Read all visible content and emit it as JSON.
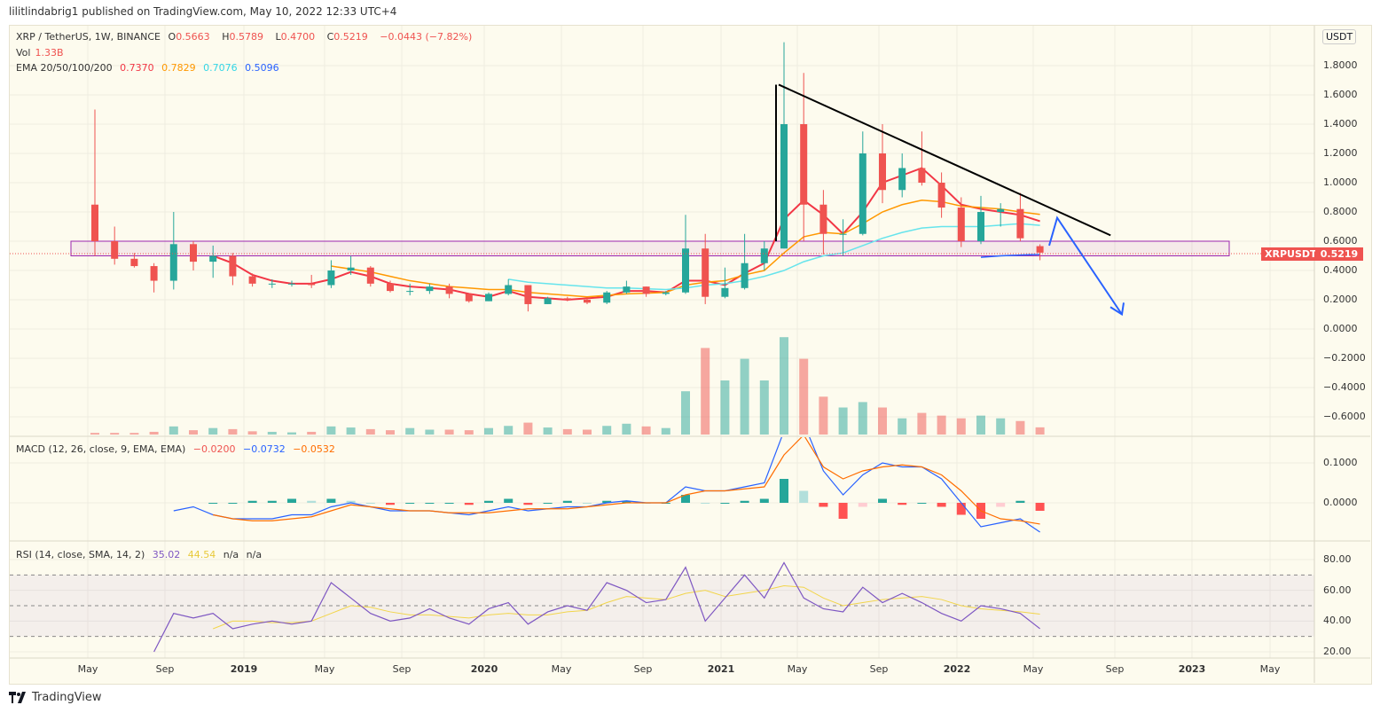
{
  "published": "lilitlindabrig1 published on TradingView.com, May 10, 2022 12:33 UTC+4",
  "legend": {
    "symbol": "XRP / TetherUS, 1W, BINANCE",
    "open_label": "O",
    "open": "0.5663",
    "high_label": "H",
    "high": "0.5789",
    "low_label": "L",
    "low": "0.4700",
    "close_label": "C",
    "close": "0.5219",
    "change": "−0.0443 (−7.82%)",
    "vol_label": "Vol",
    "vol": "1.33B",
    "ema_label": "EMA 20/50/100/200",
    "ema20": "0.7370",
    "ema50": "0.7829",
    "ema100": "0.7076",
    "ema200": "0.5096",
    "macd_label": "MACD (12, 26, close, 9, EMA, EMA)",
    "macd_hist": "−0.0200",
    "macd_line": "−0.0732",
    "macd_signal": "−0.0532",
    "rsi_label": "RSI (14, close, SMA, 14, 2)",
    "rsi": "35.02",
    "rsi_sma": "44.54",
    "rsi_na1": "n/a",
    "rsi_na2": "n/a"
  },
  "currency_badge": "USDT",
  "symbol_tag": "XRPUSDT",
  "last_price": "0.5219",
  "footer_logo": "TradingView",
  "colors": {
    "up": "#26a69a",
    "down": "#ef5350",
    "ema20": "#f23645",
    "ema50": "#ff9800",
    "ema100": "#66e4ec",
    "ema200": "#2962ff",
    "macd": "#2962ff",
    "signal": "#ff6d00",
    "rsi": "#7e57c2",
    "rsi_sma": "#f2d54a",
    "zone": "#9c27b0",
    "trendline": "#000000",
    "arrow": "#2962ff"
  },
  "chart_data": {
    "type": "candlestick",
    "interval": "1W (approximated monthly)",
    "price_axis": {
      "ticks": [
        "1.8000",
        "1.6000",
        "1.4000",
        "1.2000",
        "1.0000",
        "0.8000",
        "0.6000",
        "0.4000",
        "0.2000",
        "0.0000",
        "−0.2000",
        "−0.4000",
        "−0.6000"
      ],
      "range": [
        -0.7,
        2.0
      ]
    },
    "macd_axis": {
      "ticks": [
        "0.1000",
        "0.0000"
      ]
    },
    "rsi_axis": {
      "ticks": [
        "80.00",
        "60.00",
        "40.00",
        "20.00"
      ],
      "bands": [
        70,
        50,
        30
      ]
    },
    "time_axis": {
      "ticks": [
        "May",
        "Sep",
        "2019",
        "May",
        "Sep",
        "2020",
        "May",
        "Sep",
        "2021",
        "May",
        "Sep",
        "2022",
        "May",
        "Sep",
        "2023",
        "May"
      ]
    },
    "months": [
      "2018-05",
      "2018-06",
      "2018-07",
      "2018-08",
      "2018-09",
      "2018-10",
      "2018-11",
      "2018-12",
      "2019-01",
      "2019-02",
      "2019-03",
      "2019-04",
      "2019-05",
      "2019-06",
      "2019-07",
      "2019-08",
      "2019-09",
      "2019-10",
      "2019-11",
      "2019-12",
      "2020-01",
      "2020-02",
      "2020-03",
      "2020-04",
      "2020-05",
      "2020-06",
      "2020-07",
      "2020-08",
      "2020-09",
      "2020-10",
      "2020-11",
      "2020-12",
      "2021-01",
      "2021-02",
      "2021-03",
      "2021-04",
      "2021-05",
      "2021-06",
      "2021-07",
      "2021-08",
      "2021-09",
      "2021-10",
      "2021-11",
      "2021-12",
      "2022-01",
      "2022-02",
      "2022-03",
      "2022-04",
      "2022-05"
    ],
    "ohlc": [
      [
        0.85,
        1.5,
        0.5,
        0.6
      ],
      [
        0.6,
        0.7,
        0.44,
        0.48
      ],
      [
        0.48,
        0.52,
        0.42,
        0.43
      ],
      [
        0.43,
        0.45,
        0.25,
        0.33
      ],
      [
        0.33,
        0.8,
        0.27,
        0.58
      ],
      [
        0.58,
        0.6,
        0.4,
        0.46
      ],
      [
        0.46,
        0.57,
        0.35,
        0.5
      ],
      [
        0.5,
        0.52,
        0.3,
        0.36
      ],
      [
        0.36,
        0.38,
        0.29,
        0.31
      ],
      [
        0.31,
        0.34,
        0.28,
        0.31
      ],
      [
        0.31,
        0.33,
        0.29,
        0.31
      ],
      [
        0.31,
        0.37,
        0.28,
        0.3
      ],
      [
        0.3,
        0.47,
        0.28,
        0.4
      ],
      [
        0.4,
        0.5,
        0.37,
        0.42
      ],
      [
        0.42,
        0.43,
        0.29,
        0.31
      ],
      [
        0.31,
        0.33,
        0.25,
        0.26
      ],
      [
        0.26,
        0.31,
        0.23,
        0.26
      ],
      [
        0.26,
        0.31,
        0.24,
        0.29
      ],
      [
        0.29,
        0.31,
        0.21,
        0.24
      ],
      [
        0.24,
        0.24,
        0.18,
        0.19
      ],
      [
        0.19,
        0.25,
        0.19,
        0.24
      ],
      [
        0.24,
        0.34,
        0.23,
        0.3
      ],
      [
        0.3,
        0.3,
        0.12,
        0.17
      ],
      [
        0.17,
        0.22,
        0.17,
        0.21
      ],
      [
        0.21,
        0.22,
        0.19,
        0.2
      ],
      [
        0.2,
        0.21,
        0.17,
        0.18
      ],
      [
        0.18,
        0.26,
        0.17,
        0.25
      ],
      [
        0.25,
        0.33,
        0.24,
        0.29
      ],
      [
        0.29,
        0.29,
        0.22,
        0.24
      ],
      [
        0.24,
        0.26,
        0.23,
        0.25
      ],
      [
        0.25,
        0.78,
        0.24,
        0.55
      ],
      [
        0.55,
        0.65,
        0.17,
        0.22
      ],
      [
        0.22,
        0.42,
        0.21,
        0.28
      ],
      [
        0.28,
        0.65,
        0.27,
        0.45
      ],
      [
        0.45,
        0.6,
        0.4,
        0.55
      ],
      [
        0.55,
        1.96,
        0.55,
        1.4
      ],
      [
        1.4,
        1.75,
        0.6,
        0.85
      ],
      [
        0.85,
        0.95,
        0.51,
        0.65
      ],
      [
        0.65,
        0.75,
        0.5,
        0.65
      ],
      [
        0.65,
        1.35,
        0.64,
        1.2
      ],
      [
        1.2,
        1.4,
        0.86,
        0.95
      ],
      [
        0.95,
        1.2,
        0.9,
        1.1
      ],
      [
        1.1,
        1.35,
        0.98,
        1.0
      ],
      [
        1.0,
        1.07,
        0.76,
        0.83
      ],
      [
        0.83,
        0.9,
        0.56,
        0.6
      ],
      [
        0.6,
        0.91,
        0.58,
        0.8
      ],
      [
        0.8,
        0.86,
        0.7,
        0.82
      ],
      [
        0.82,
        0.93,
        0.6,
        0.62
      ],
      [
        0.5663,
        0.5789,
        0.47,
        0.5219
      ]
    ],
    "volume_billions": [
      0.3,
      0.3,
      0.3,
      0.5,
      1.5,
      0.8,
      1.2,
      1.0,
      0.6,
      0.5,
      0.4,
      0.5,
      1.5,
      1.3,
      1.0,
      0.8,
      1.2,
      0.9,
      0.9,
      0.8,
      1.2,
      1.6,
      2.2,
      1.3,
      1.0,
      0.9,
      1.6,
      2.0,
      1.5,
      1.2,
      8,
      16,
      10,
      14,
      10,
      18,
      14,
      7,
      5,
      6,
      5,
      3,
      4,
      3.5,
      3,
      3.5,
      3,
      2.5,
      1.33
    ],
    "ema": [
      {
        "name": "EMA 20",
        "start": "2018-11",
        "values": [
          0.5,
          0.45,
          0.37,
          0.33,
          0.31,
          0.31,
          0.34,
          0.39,
          0.36,
          0.31,
          0.29,
          0.28,
          0.27,
          0.24,
          0.22,
          0.26,
          0.22,
          0.21,
          0.2,
          0.21,
          0.22,
          0.26,
          0.26,
          0.25,
          0.33,
          0.33,
          0.3,
          0.38,
          0.45,
          0.75,
          0.88,
          0.78,
          0.65,
          0.8,
          1.0,
          1.05,
          1.1,
          0.98,
          0.85,
          0.82,
          0.8,
          0.78,
          0.737
        ]
      },
      {
        "name": "EMA 50",
        "start": "2019-05",
        "values": [
          0.43,
          0.41,
          0.39,
          0.36,
          0.33,
          0.31,
          0.29,
          0.28,
          0.27,
          0.27,
          0.25,
          0.24,
          0.23,
          0.22,
          0.23,
          0.24,
          0.245,
          0.25,
          0.3,
          0.32,
          0.33,
          0.37,
          0.4,
          0.52,
          0.63,
          0.66,
          0.65,
          0.72,
          0.8,
          0.85,
          0.88,
          0.87,
          0.84,
          0.83,
          0.82,
          0.8,
          0.783
        ]
      },
      {
        "name": "EMA 100",
        "start": "2020-02",
        "values": [
          0.34,
          0.32,
          0.31,
          0.3,
          0.29,
          0.28,
          0.28,
          0.275,
          0.27,
          0.28,
          0.3,
          0.31,
          0.33,
          0.36,
          0.4,
          0.46,
          0.5,
          0.52,
          0.57,
          0.62,
          0.66,
          0.69,
          0.7,
          0.7,
          0.7,
          0.71,
          0.72,
          0.708
        ]
      },
      {
        "name": "EMA 200",
        "start": "2022-02",
        "values": [
          0.49,
          0.5,
          0.505,
          0.51
        ]
      }
    ],
    "macd": {
      "start": "2018-09",
      "values": [
        -0.02,
        -0.01,
        -0.03,
        -0.04,
        -0.04,
        -0.04,
        -0.03,
        -0.03,
        -0.01,
        0.0,
        -0.01,
        -0.02,
        -0.02,
        -0.02,
        -0.025,
        -0.03,
        -0.02,
        -0.01,
        -0.02,
        -0.015,
        -0.01,
        -0.01,
        0.0,
        0.005,
        0.0,
        0.0,
        0.04,
        0.03,
        0.03,
        0.04,
        0.05,
        0.18,
        0.2,
        0.08,
        0.02,
        0.07,
        0.1,
        0.09,
        0.09,
        0.06,
        0.0,
        -0.06,
        -0.05,
        -0.04,
        -0.0732
      ]
    },
    "signal": {
      "start": "2018-11",
      "values": [
        -0.03,
        -0.04,
        -0.045,
        -0.045,
        -0.04,
        -0.035,
        -0.02,
        -0.005,
        -0.01,
        -0.015,
        -0.02,
        -0.02,
        -0.025,
        -0.025,
        -0.025,
        -0.02,
        -0.015,
        -0.015,
        -0.015,
        -0.01,
        -0.005,
        0.0,
        0.0,
        0.0,
        0.02,
        0.03,
        0.03,
        0.035,
        0.04,
        0.12,
        0.17,
        0.09,
        0.06,
        0.08,
        0.09,
        0.095,
        0.09,
        0.07,
        0.03,
        -0.02,
        -0.04,
        -0.045,
        -0.0532
      ]
    },
    "rsi": {
      "start": "2018-08",
      "values": [
        20,
        45,
        42,
        45,
        35,
        38,
        40,
        38,
        40,
        65,
        55,
        45,
        40,
        42,
        48,
        42,
        38,
        48,
        52,
        38,
        46,
        50,
        47,
        65,
        60,
        52,
        54,
        75,
        40,
        55,
        70,
        55,
        78,
        55,
        48,
        46,
        62,
        52,
        58,
        52,
        45,
        40,
        50,
        48,
        45,
        35.02
      ]
    },
    "rsi_sma": {
      "start": "2018-11",
      "values": [
        35,
        40,
        40,
        39,
        39,
        40,
        45,
        50,
        49,
        46,
        44,
        44,
        43,
        42,
        44,
        45,
        44,
        44,
        46,
        47,
        52,
        56,
        55,
        54,
        58,
        60,
        56,
        58,
        60,
        63,
        62,
        55,
        50,
        52,
        54,
        55,
        56,
        54,
        50,
        48,
        47,
        46,
        44.54
      ]
    },
    "annotations": {
      "support_zone": [
        0.5,
        0.6
      ],
      "descending_trendline": {
        "from": [
          "2021-04",
          1.67
        ],
        "to": [
          "2022-08",
          0.64
        ]
      },
      "projection_arrow": [
        [
          "2022-05",
          0.57
        ],
        [
          "2022-06",
          0.76
        ],
        [
          "2022-09",
          0.1
        ]
      ]
    }
  }
}
